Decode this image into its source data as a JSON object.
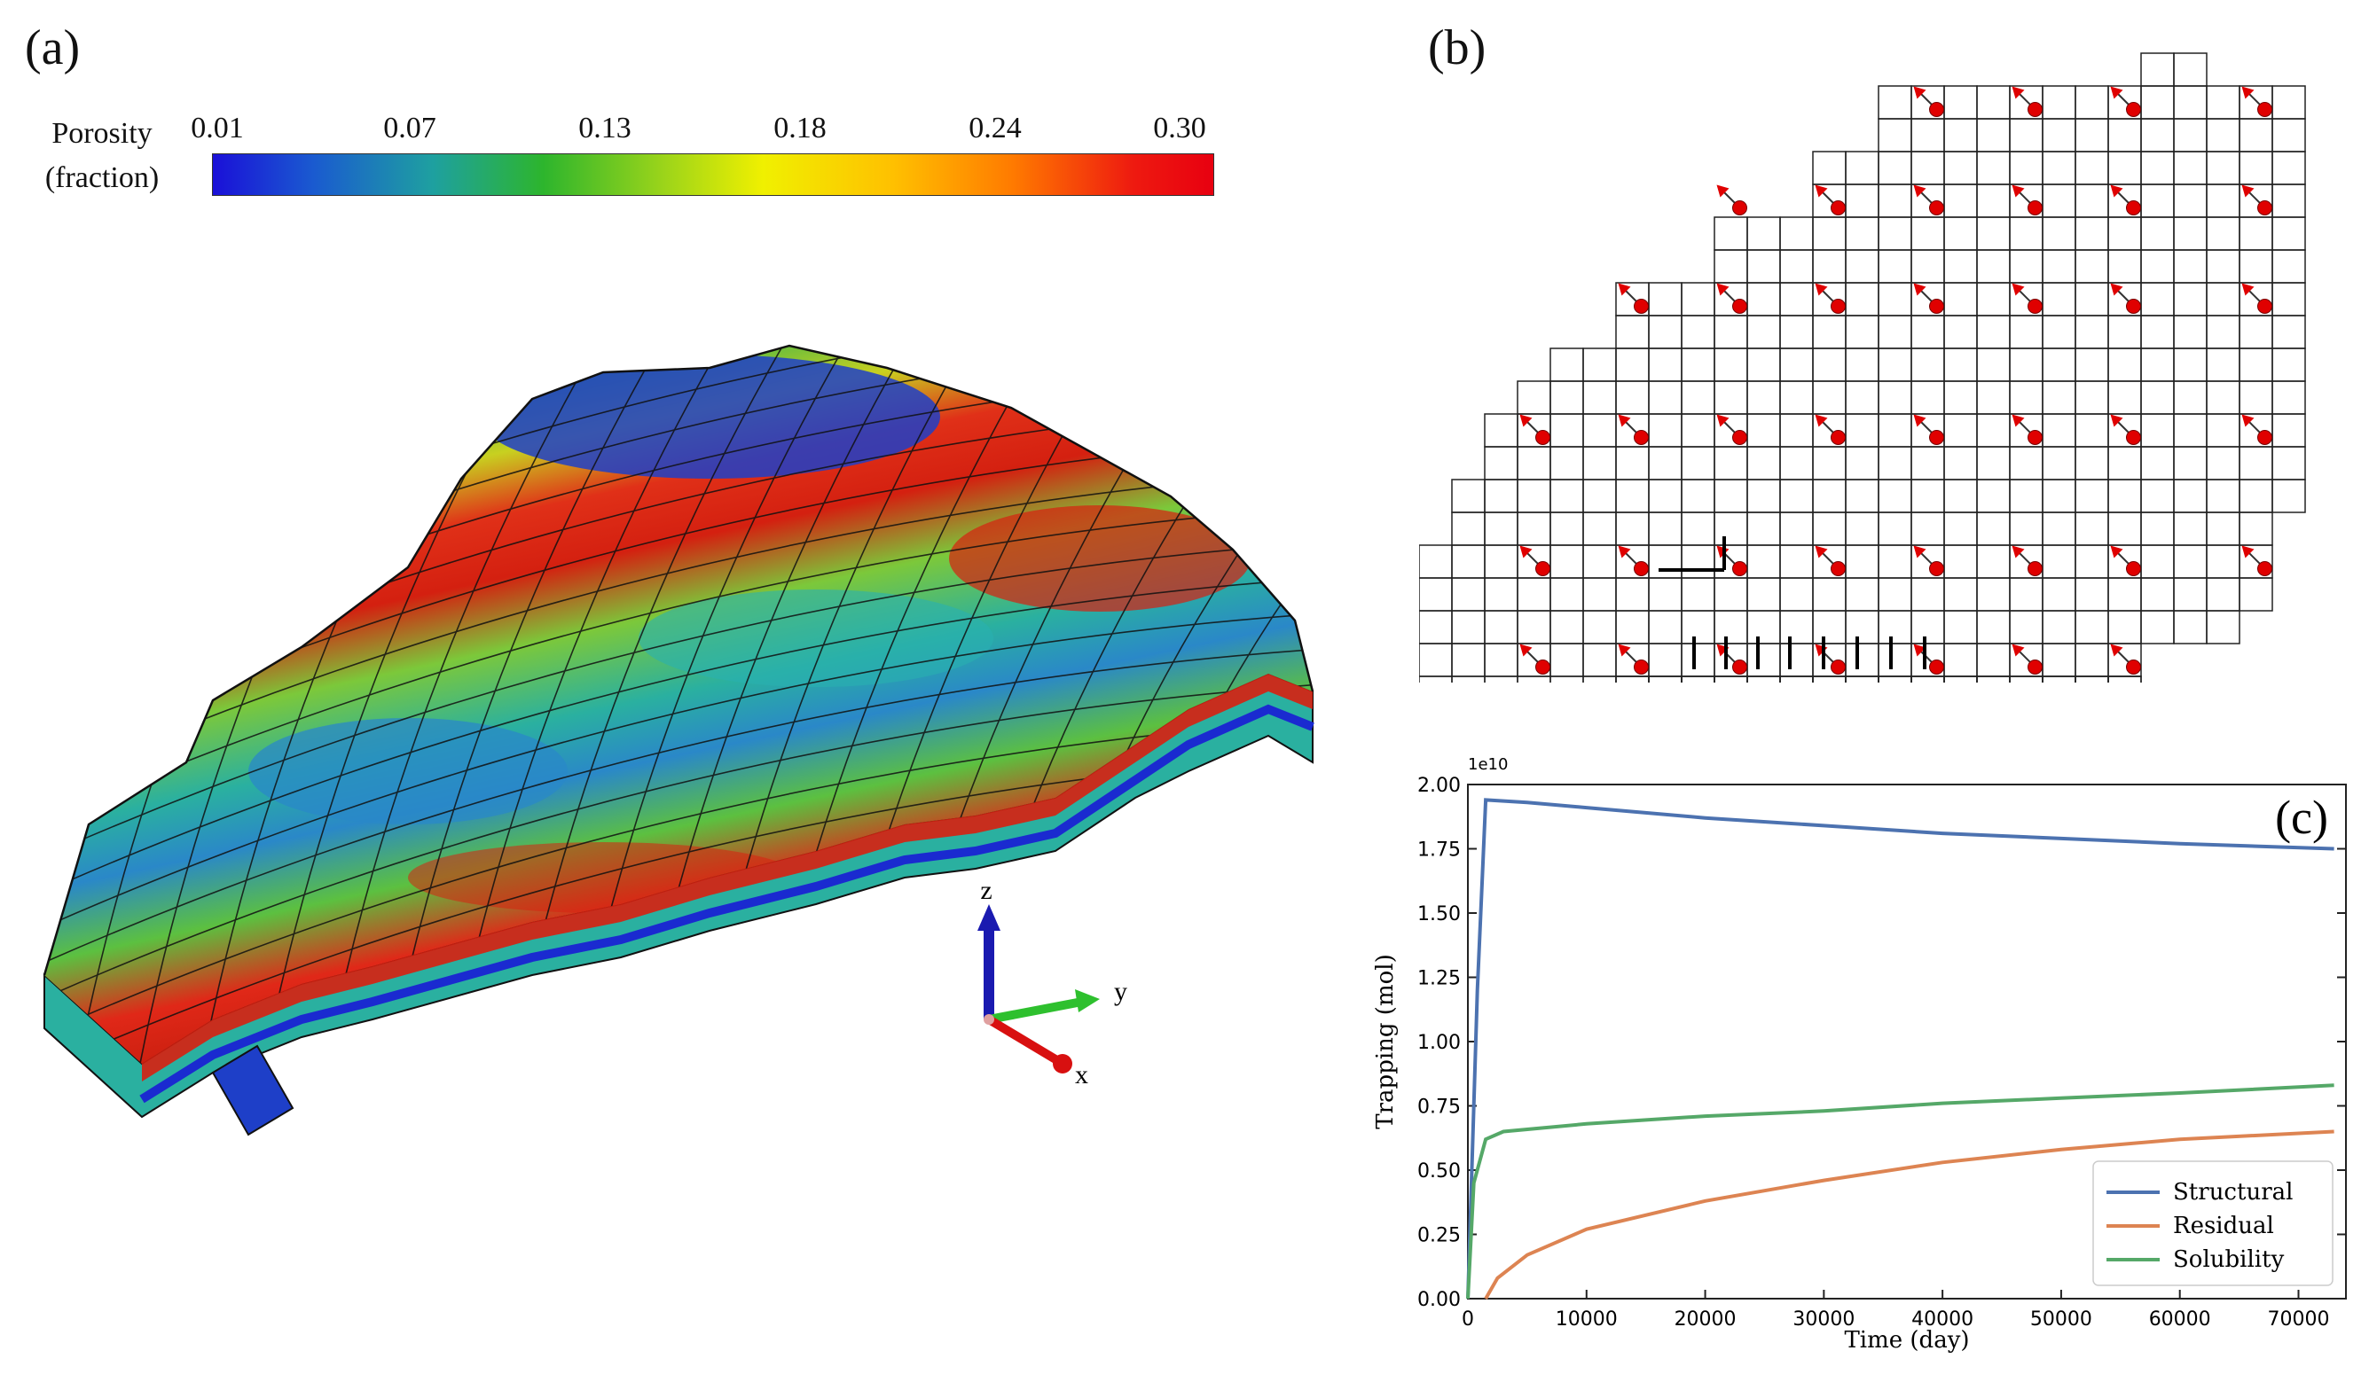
{
  "panels": {
    "a": {
      "label": "(a)",
      "colorbar": {
        "title_line1": "Porosity",
        "title_line2": "(fraction)",
        "ticks": [
          "0.01",
          "0.07",
          "0.13",
          "0.18",
          "0.24",
          "0.30"
        ]
      },
      "axes_indicator": {
        "z": "z",
        "y": "y",
        "x": "x"
      }
    },
    "b": {
      "label": "(b)",
      "description_wells": "injection well arrows"
    },
    "c": {
      "label": "(c)",
      "chart_data": {
        "type": "line",
        "title": "",
        "xlabel": "Time (day)",
        "ylabel": "Trapping (mol)",
        "scale_label": "1e10",
        "xlim": [
          0,
          74000
        ],
        "ylim": [
          0,
          2.0
        ],
        "xticks": [
          "0",
          "10000",
          "20000",
          "30000",
          "40000",
          "50000",
          "60000",
          "70000"
        ],
        "yticks": [
          "0.00",
          "0.25",
          "0.50",
          "0.75",
          "1.00",
          "1.25",
          "1.50",
          "1.75",
          "2.00"
        ],
        "series": [
          {
            "name": "Structural",
            "color": "#4c72b0",
            "x": [
              0,
              800,
              1500,
              5000,
              10000,
              20000,
              30000,
              40000,
              50000,
              60000,
              73000
            ],
            "y": [
              0,
              1.2,
              1.94,
              1.93,
              1.91,
              1.87,
              1.84,
              1.81,
              1.79,
              1.77,
              1.75
            ]
          },
          {
            "name": "Residual",
            "color": "#dd8452",
            "x": [
              1500,
              2500,
              5000,
              10000,
              20000,
              30000,
              40000,
              50000,
              60000,
              73000
            ],
            "y": [
              0,
              0.08,
              0.17,
              0.27,
              0.38,
              0.46,
              0.53,
              0.58,
              0.62,
              0.65
            ]
          },
          {
            "name": "Solubility",
            "color": "#55a868",
            "x": [
              0,
              500,
              1500,
              3000,
              10000,
              20000,
              30000,
              40000,
              50000,
              60000,
              73000
            ],
            "y": [
              0,
              0.45,
              0.62,
              0.65,
              0.68,
              0.71,
              0.73,
              0.76,
              0.78,
              0.8,
              0.83
            ]
          }
        ],
        "legend": "bottom-right"
      }
    }
  }
}
